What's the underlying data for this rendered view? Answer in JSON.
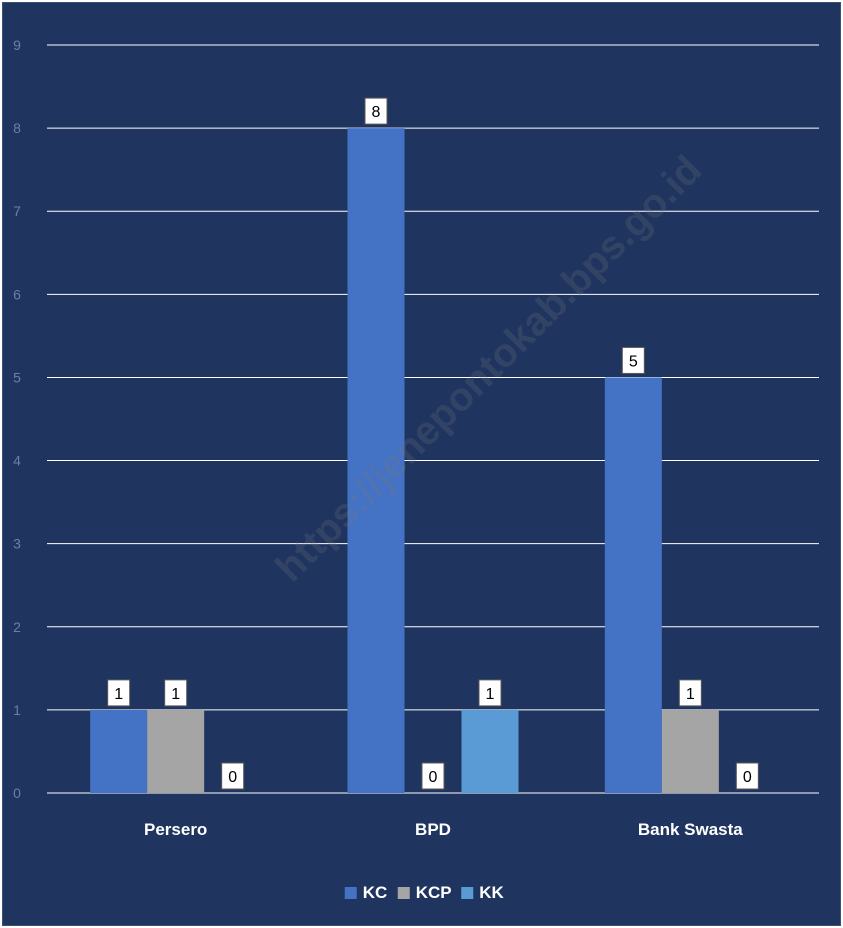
{
  "chart_data": {
    "type": "bar",
    "categories": [
      "Persero",
      "BPD",
      "Bank Swasta"
    ],
    "series": [
      {
        "name": "KC",
        "values": [
          1,
          8,
          5
        ],
        "color": "#4472c4"
      },
      {
        "name": "KCP",
        "values": [
          1,
          0,
          1
        ],
        "color": "#a5a5a5"
      },
      {
        "name": "KK",
        "values": [
          0,
          1,
          0
        ],
        "color": "#5b9bd5"
      }
    ],
    "ylim": [
      0,
      9
    ],
    "yticks": [
      "0",
      "1",
      "2",
      "3",
      "4",
      "5",
      "6",
      "7",
      "8",
      "9"
    ],
    "grid": true,
    "legend_position": "bottom",
    "watermark": "https://jenepontokab.bps.go.id",
    "background_color": "#1f3560",
    "gridline_color": "#ffffff"
  }
}
